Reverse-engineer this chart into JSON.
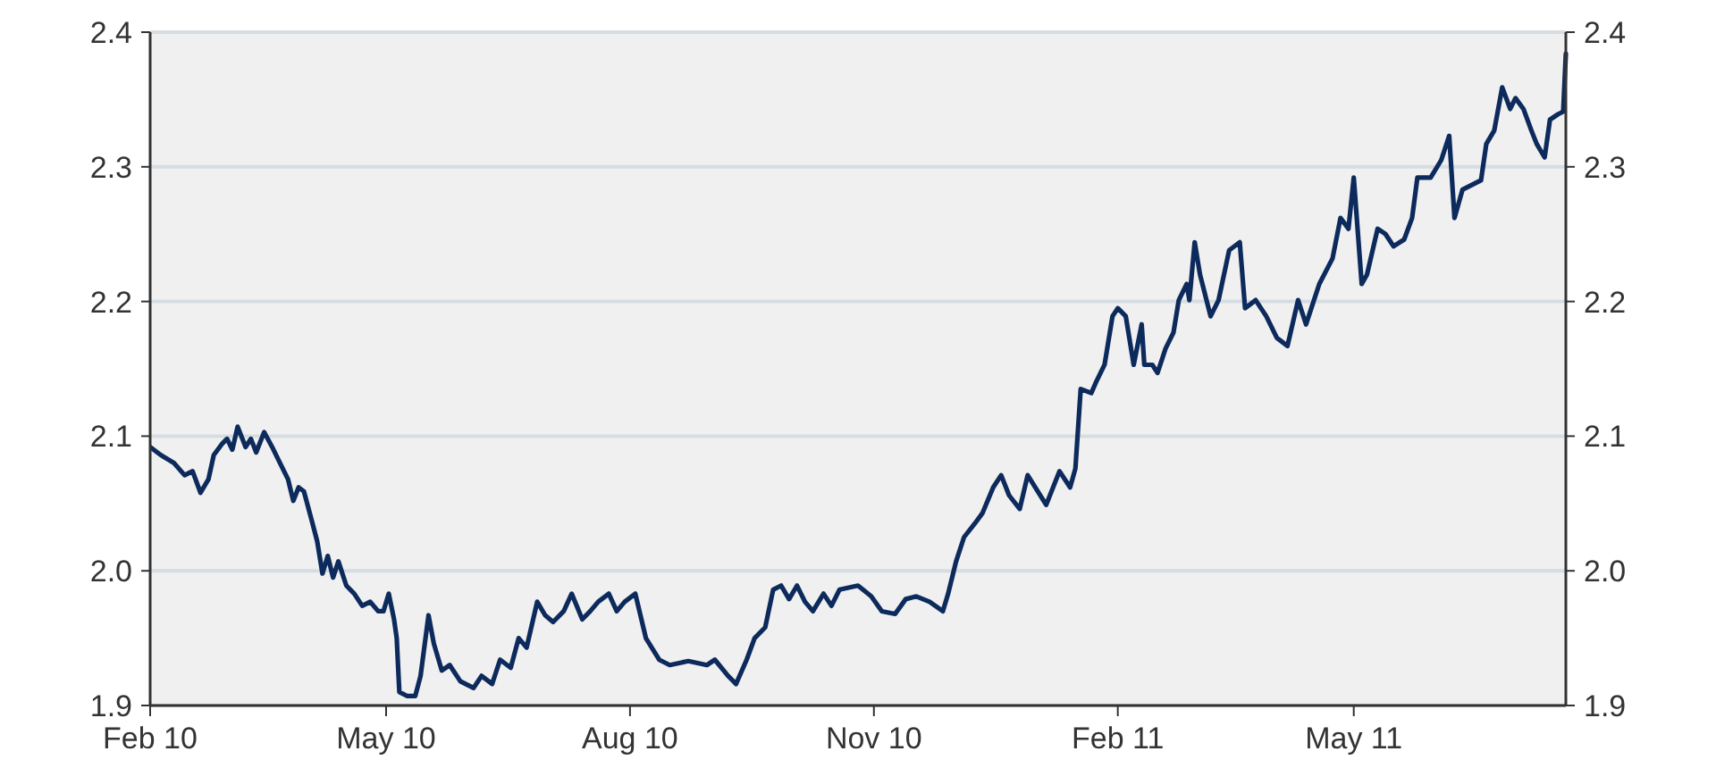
{
  "chart_data": {
    "type": "line",
    "x": [
      "2010-02-01",
      "2010-02-05",
      "2010-02-10",
      "2010-02-14",
      "2010-02-17",
      "2010-02-20",
      "2010-02-23",
      "2010-02-25",
      "2010-02-28",
      "2010-03-02",
      "2010-03-04",
      "2010-03-06",
      "2010-03-09",
      "2010-03-11",
      "2010-03-13",
      "2010-03-16",
      "2010-03-19",
      "2010-03-22",
      "2010-03-25",
      "2010-03-27",
      "2010-03-29",
      "2010-03-31",
      "2010-04-03",
      "2010-04-05",
      "2010-04-07",
      "2010-04-09",
      "2010-04-11",
      "2010-04-13",
      "2010-04-16",
      "2010-04-19",
      "2010-04-22",
      "2010-04-25",
      "2010-04-28",
      "2010-04-30",
      "2010-05-02",
      "2010-05-04",
      "2010-05-05",
      "2010-05-06",
      "2010-05-09",
      "2010-05-12",
      "2010-05-14",
      "2010-05-17",
      "2010-05-19",
      "2010-05-22",
      "2010-05-25",
      "2010-05-29",
      "2010-06-03",
      "2010-06-06",
      "2010-06-10",
      "2010-06-13",
      "2010-06-17",
      "2010-06-20",
      "2010-06-23",
      "2010-06-27",
      "2010-06-30",
      "2010-07-03",
      "2010-07-07",
      "2010-07-10",
      "2010-07-14",
      "2010-07-17",
      "2010-07-20",
      "2010-07-24",
      "2010-07-27",
      "2010-07-30",
      "2010-08-03",
      "2010-08-07",
      "2010-08-12",
      "2010-08-16",
      "2010-08-23",
      "2010-08-30",
      "2010-09-02",
      "2010-09-07",
      "2010-09-10",
      "2010-09-14",
      "2010-09-17",
      "2010-09-21",
      "2010-09-24",
      "2010-09-27",
      "2010-09-30",
      "2010-10-03",
      "2010-10-06",
      "2010-10-09",
      "2010-10-13",
      "2010-10-16",
      "2010-10-19",
      "2010-10-26",
      "2010-10-31",
      "2010-11-04",
      "2010-11-09",
      "2010-11-13",
      "2010-11-17",
      "2010-11-22",
      "2010-11-27",
      "2010-11-29",
      "2010-12-02",
      "2010-12-05",
      "2010-12-09",
      "2010-12-12",
      "2010-12-16",
      "2010-12-19",
      "2010-12-22",
      "2010-12-26",
      "2010-12-29",
      "2011-01-05",
      "2011-01-10",
      "2011-01-14",
      "2011-01-16",
      "2011-01-18",
      "2011-01-22",
      "2011-01-24",
      "2011-01-27",
      "2011-01-30",
      "2011-02-01",
      "2011-02-04",
      "2011-02-07",
      "2011-02-10",
      "2011-02-11",
      "2011-02-14",
      "2011-02-16",
      "2011-02-19",
      "2011-02-22",
      "2011-02-24",
      "2011-02-27",
      "2011-02-28",
      "2011-03-02",
      "2011-03-04",
      "2011-03-08",
      "2011-03-11",
      "2011-03-15",
      "2011-03-19",
      "2011-03-21",
      "2011-03-25",
      "2011-03-29",
      "2011-04-02",
      "2011-04-06",
      "2011-04-10",
      "2011-04-13",
      "2011-04-15",
      "2011-04-18",
      "2011-04-23",
      "2011-04-26",
      "2011-04-29",
      "2011-05-01",
      "2011-05-04",
      "2011-05-06",
      "2011-05-10",
      "2011-05-13",
      "2011-05-16",
      "2011-05-20",
      "2011-05-23",
      "2011-05-25",
      "2011-05-30",
      "2011-06-03",
      "2011-06-06",
      "2011-06-08",
      "2011-06-11",
      "2011-06-14",
      "2011-06-18",
      "2011-06-20",
      "2011-06-23",
      "2011-06-26",
      "2011-06-29",
      "2011-07-01",
      "2011-07-04",
      "2011-07-07",
      "2011-07-09",
      "2011-07-12",
      "2011-07-14",
      "2011-07-17",
      "2011-07-19",
      "2011-07-20"
    ],
    "series": [
      {
        "color": "#0d2a5c",
        "values": [
          2.092,
          2.086,
          2.08,
          2.071,
          2.074,
          2.058,
          2.068,
          2.086,
          2.094,
          2.098,
          2.09,
          2.107,
          2.092,
          2.098,
          2.088,
          2.103,
          2.092,
          2.08,
          2.068,
          2.052,
          2.062,
          2.059,
          2.037,
          2.022,
          1.998,
          2.011,
          1.995,
          2.007,
          1.989,
          1.983,
          1.974,
          1.977,
          1.97,
          1.97,
          1.983,
          1.964,
          1.95,
          1.91,
          1.907,
          1.907,
          1.922,
          1.967,
          1.946,
          1.926,
          1.93,
          1.918,
          1.913,
          1.922,
          1.916,
          1.934,
          1.928,
          1.95,
          1.943,
          1.977,
          1.967,
          1.962,
          1.97,
          1.983,
          1.964,
          1.97,
          1.977,
          1.983,
          1.97,
          1.977,
          1.983,
          1.95,
          1.934,
          1.93,
          1.933,
          1.93,
          1.934,
          1.922,
          1.916,
          1.934,
          1.95,
          1.958,
          1.986,
          1.989,
          1.979,
          1.989,
          1.977,
          1.97,
          1.983,
          1.974,
          1.986,
          1.989,
          1.981,
          1.97,
          1.968,
          1.979,
          1.981,
          1.977,
          1.97,
          1.983,
          2.007,
          2.025,
          2.035,
          2.043,
          2.062,
          2.071,
          2.056,
          2.046,
          2.071,
          2.049,
          2.074,
          2.062,
          2.076,
          2.135,
          2.132,
          2.141,
          2.153,
          2.189,
          2.195,
          2.189,
          2.153,
          2.183,
          2.153,
          2.153,
          2.147,
          2.165,
          2.177,
          2.201,
          2.213,
          2.201,
          2.244,
          2.22,
          2.189,
          2.201,
          2.238,
          2.244,
          2.195,
          2.201,
          2.189,
          2.173,
          2.167,
          2.201,
          2.183,
          2.195,
          2.213,
          2.232,
          2.262,
          2.254,
          2.292,
          2.213,
          2.22,
          2.254,
          2.25,
          2.241,
          2.246,
          2.262,
          2.292,
          2.292,
          2.305,
          2.323,
          2.262,
          2.283,
          2.286,
          2.29,
          2.317,
          2.327,
          2.359,
          2.343,
          2.351,
          2.343,
          2.327,
          2.317,
          2.307,
          2.335,
          2.339,
          2.341,
          2.384
        ]
      }
    ],
    "xlim": [
      "2010-02-01",
      "2011-07-20"
    ],
    "xticks": [
      {
        "value": "2010-02-01",
        "label": "Feb 10"
      },
      {
        "value": "2010-05-01",
        "label": "May 10"
      },
      {
        "value": "2010-08-01",
        "label": "Aug 10"
      },
      {
        "value": "2010-11-01",
        "label": "Nov 10"
      },
      {
        "value": "2011-02-01",
        "label": "Feb 11"
      },
      {
        "value": "2011-05-01",
        "label": "May 11"
      }
    ],
    "ylim": [
      1.9,
      2.4
    ],
    "yticks": [
      {
        "value": 1.9,
        "label": "1.9"
      },
      {
        "value": 2.0,
        "label": "2.0"
      },
      {
        "value": 2.1,
        "label": "2.1"
      },
      {
        "value": 2.2,
        "label": "2.2"
      },
      {
        "value": 2.3,
        "label": "2.3"
      },
      {
        "value": 2.4,
        "label": "2.4"
      }
    ],
    "y2lim": [
      1.9,
      2.4
    ],
    "y2ticks": [
      {
        "value": 1.9,
        "label": "1.9"
      },
      {
        "value": 2.0,
        "label": "2.0"
      },
      {
        "value": 2.1,
        "label": "2.1"
      },
      {
        "value": 2.2,
        "label": "2.2"
      },
      {
        "value": 2.3,
        "label": "2.3"
      },
      {
        "value": 2.4,
        "label": "2.4"
      }
    ],
    "grid": "y"
  }
}
